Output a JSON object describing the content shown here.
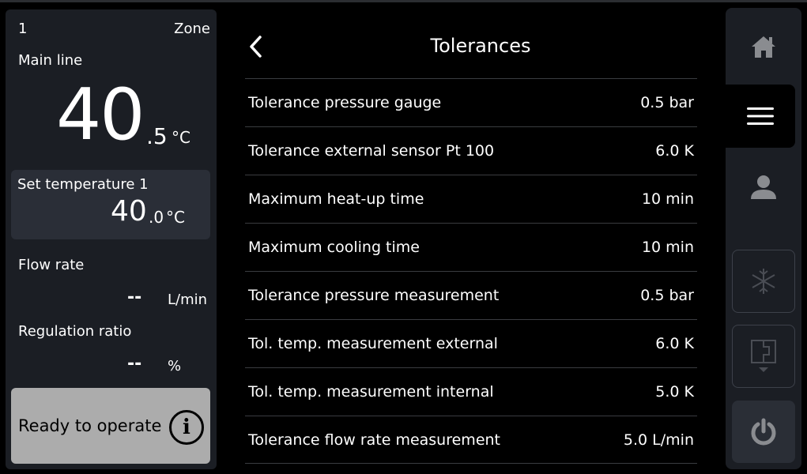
{
  "zone": {
    "number": "1",
    "label": "Zone"
  },
  "main_line": {
    "label": "Main line",
    "value_int": "40",
    "value_dec": ".5",
    "unit": "°C"
  },
  "set_temperature": {
    "label": "Set temperature 1",
    "value_int": "40",
    "value_dec": ".0",
    "unit": "°C"
  },
  "flow_rate": {
    "label": "Flow rate",
    "value": "--",
    "unit": "L/min"
  },
  "regulation_ratio": {
    "label": "Regulation ratio",
    "value": "--",
    "unit": "%"
  },
  "status": {
    "text": "Ready to operate",
    "icon": "info-icon",
    "color": "#acacac"
  },
  "page": {
    "title": "Tolerances",
    "back_icon": "chevron-left-icon"
  },
  "tolerances": [
    {
      "label": "Tolerance pressure gauge",
      "value": "0.5 bar"
    },
    {
      "label": "Tolerance external sensor Pt 100",
      "value": "6.0 K"
    },
    {
      "label": "Maximum heat-up time",
      "value": "10 min"
    },
    {
      "label": "Maximum cooling time",
      "value": "10 min"
    },
    {
      "label": "Tolerance pressure measurement",
      "value": "0.5 bar"
    },
    {
      "label": "Tol. temp. measurement external",
      "value": "6.0 K"
    },
    {
      "label": "Tol. temp. measurement internal",
      "value": "5.0 K"
    },
    {
      "label": "Tolerance flow rate measurement",
      "value": "5.0 L/min"
    }
  ],
  "nav": {
    "items": [
      "home-icon",
      "menu-icon",
      "user-icon",
      "snowflake-icon",
      "circuit-icon",
      "power-icon"
    ],
    "active": "menu-icon"
  }
}
